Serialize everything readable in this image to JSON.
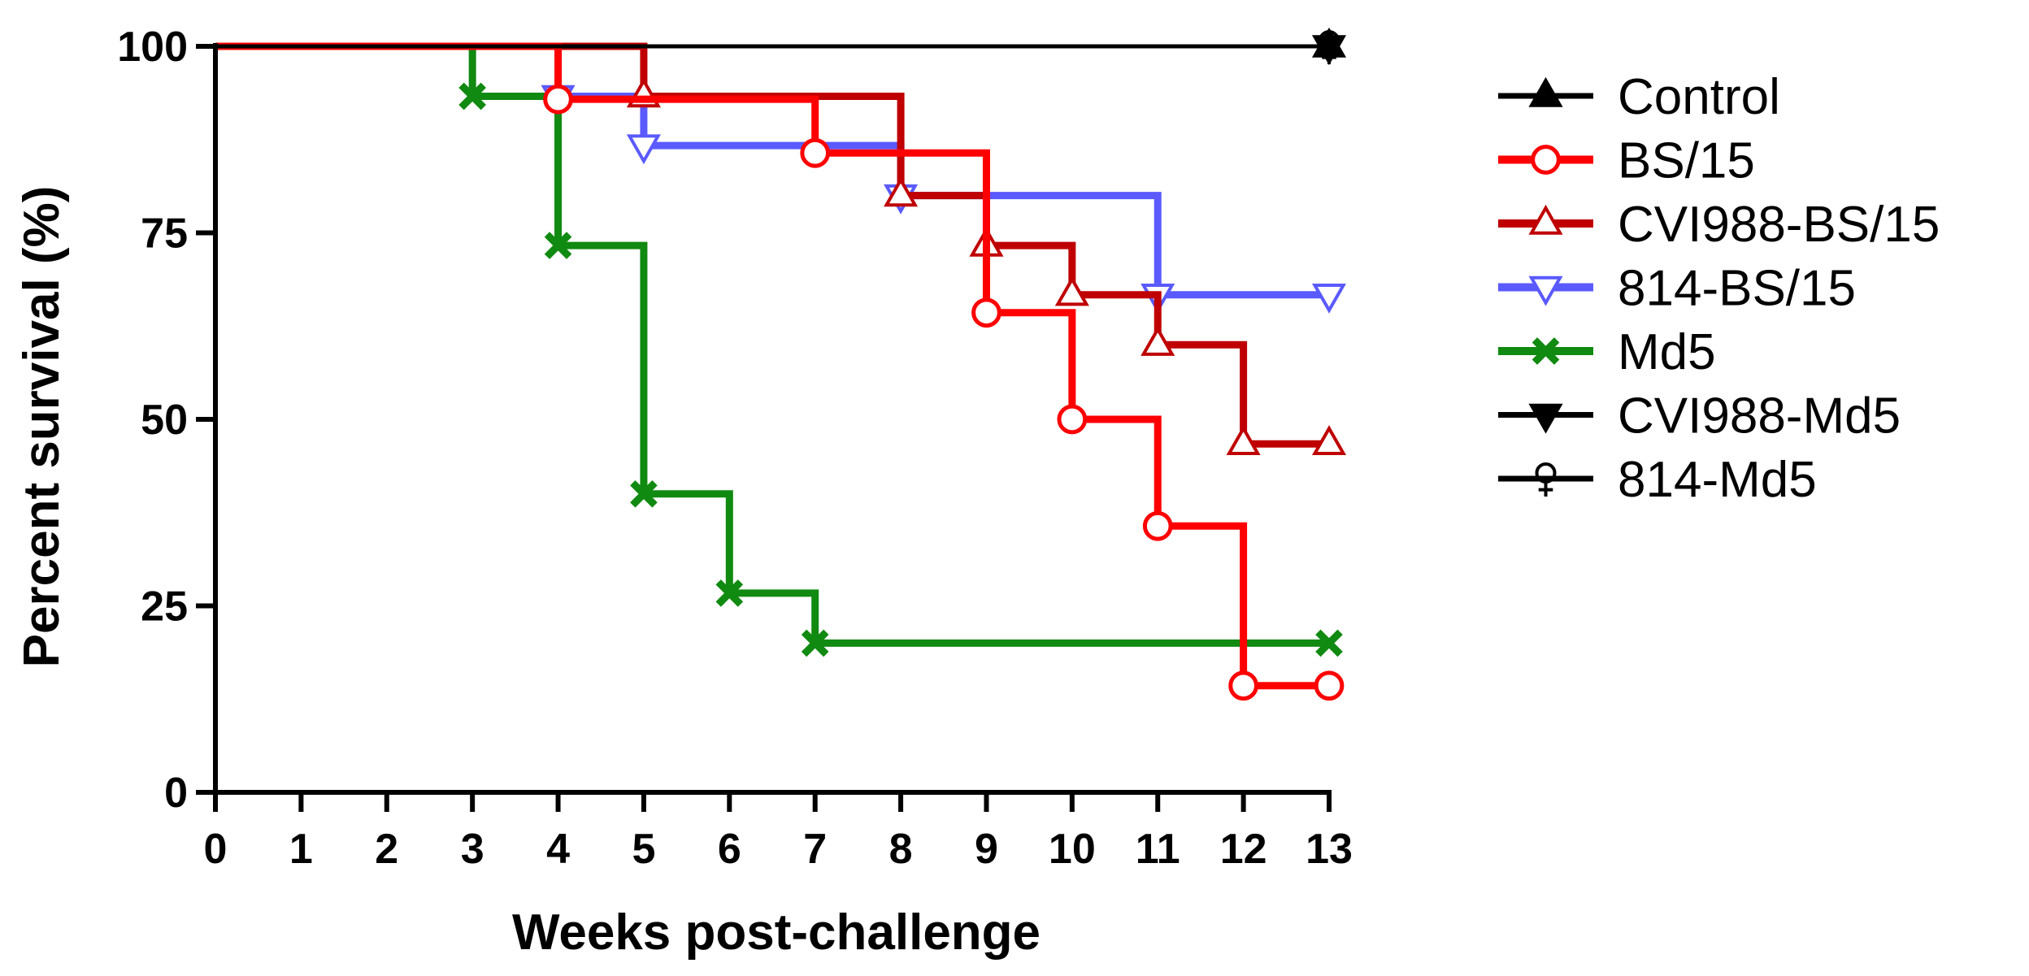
{
  "chart_data": {
    "type": "line",
    "subtype": "kaplan-meier-step",
    "xlabel": "Weeks post-challenge",
    "ylabel": "Percent survival (%)",
    "xlim": [
      0,
      13
    ],
    "ylim": [
      0,
      100
    ],
    "x_ticks": [
      0,
      1,
      2,
      3,
      4,
      5,
      6,
      7,
      8,
      9,
      10,
      11,
      12,
      13
    ],
    "y_ticks": [
      0,
      25,
      50,
      75,
      100
    ],
    "grid": false,
    "legend_position": "right",
    "series": [
      {
        "name": "Control",
        "color": "#000000",
        "marker": "triangle-up",
        "x": [
          0,
          13
        ],
        "y": [
          100,
          100
        ],
        "markers": [
          [
            13,
            100
          ]
        ]
      },
      {
        "name": "BS/15",
        "color": "#ff0000",
        "marker": "circle",
        "x": [
          0,
          4,
          7,
          9,
          10,
          11,
          12,
          13
        ],
        "y": [
          100,
          92.9,
          85.7,
          64.3,
          50,
          35.7,
          14.3,
          14.3
        ],
        "markers": [
          [
            4,
            92.9
          ],
          [
            7,
            85.7
          ],
          [
            9,
            64.3
          ],
          [
            10,
            50
          ],
          [
            11,
            35.7
          ],
          [
            12,
            14.3
          ],
          [
            13,
            14.3
          ]
        ]
      },
      {
        "name": "CVI988-BS/15",
        "color": "#c00000",
        "marker": "triangle-up-open",
        "x": [
          0,
          5,
          8,
          9,
          10,
          11,
          12,
          13
        ],
        "y": [
          100,
          93.3,
          80,
          73.3,
          66.7,
          60,
          46.7,
          46.7
        ],
        "markers": [
          [
            5,
            93.3
          ],
          [
            8,
            80
          ],
          [
            9,
            73.3
          ],
          [
            10,
            66.7
          ],
          [
            11,
            60
          ],
          [
            12,
            46.7
          ],
          [
            13,
            46.7
          ]
        ]
      },
      {
        "name": "814-BS/15",
        "color": "#5a5aff",
        "marker": "triangle-down-open",
        "x": [
          0,
          4,
          5,
          8,
          11,
          13
        ],
        "y": [
          100,
          93.3,
          86.7,
          80,
          66.7,
          66.7
        ],
        "markers": [
          [
            4,
            93.3
          ],
          [
            5,
            86.7
          ],
          [
            8,
            80
          ],
          [
            11,
            66.7
          ],
          [
            13,
            66.7
          ]
        ]
      },
      {
        "name": "Md5",
        "color": "#108a10",
        "marker": "x",
        "x": [
          0,
          3,
          4,
          5,
          6,
          7,
          13
        ],
        "y": [
          100,
          93.3,
          73.3,
          40,
          26.7,
          20,
          20
        ],
        "markers": [
          [
            3,
            93.3
          ],
          [
            4,
            73.3
          ],
          [
            5,
            40
          ],
          [
            6,
            26.7
          ],
          [
            7,
            20
          ],
          [
            13,
            20
          ]
        ]
      },
      {
        "name": "CVI988-Md5",
        "color": "#000000",
        "marker": "triangle-down",
        "x": [
          0,
          13
        ],
        "y": [
          100,
          100
        ],
        "markers": [
          [
            13,
            100
          ]
        ]
      },
      {
        "name": "814-Md5",
        "color": "#000000",
        "marker": "female",
        "x": [
          0,
          13
        ],
        "y": [
          100,
          100
        ],
        "markers": [
          [
            13,
            100
          ]
        ]
      }
    ]
  }
}
